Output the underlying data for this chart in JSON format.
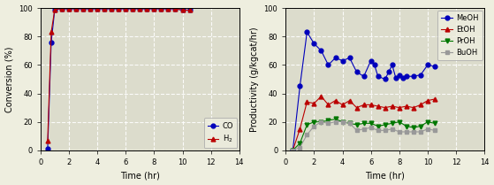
{
  "left_chart": {
    "xlabel": "Time (hr)",
    "ylabel": "Conversion (%)",
    "xlim": [
      0,
      14
    ],
    "ylim": [
      0,
      100
    ],
    "xticks": [
      0,
      2,
      4,
      6,
      8,
      10,
      12,
      14
    ],
    "yticks": [
      0,
      20,
      40,
      60,
      80,
      100
    ],
    "CO": {
      "x": [
        0.5,
        0.75,
        1.0,
        1.5,
        2.0,
        2.5,
        3.0,
        3.5,
        4.0,
        4.5,
        5.0,
        5.5,
        6.0,
        6.5,
        7.0,
        7.5,
        8.0,
        8.5,
        9.0,
        9.5,
        10.0,
        10.5
      ],
      "y": [
        1,
        76,
        99,
        99.5,
        99.5,
        99.5,
        99.5,
        99.5,
        99.5,
        99.5,
        99.5,
        99.5,
        99.5,
        99.5,
        99.5,
        99.5,
        99.5,
        99.5,
        99.5,
        99.5,
        98.5,
        98.5
      ],
      "color": "#0000bb",
      "marker": "o",
      "label": "CO"
    },
    "H2": {
      "x": [
        0.5,
        0.75,
        1.0,
        1.5,
        2.0,
        2.5,
        3.0,
        3.5,
        4.0,
        4.5,
        5.0,
        5.5,
        6.0,
        6.5,
        7.0,
        7.5,
        8.0,
        8.5,
        9.0,
        9.5,
        10.0,
        10.5
      ],
      "y": [
        7,
        83,
        99,
        99.5,
        99.5,
        99.5,
        99.5,
        99.5,
        99.5,
        99.5,
        99.5,
        99.5,
        99.5,
        99.5,
        99.5,
        99.5,
        99.5,
        99.5,
        99.5,
        99.5,
        98.5,
        98.5
      ],
      "color": "#bb0000",
      "marker": "^",
      "label": "H$_2$"
    }
  },
  "right_chart": {
    "xlabel": "Time (hr)",
    "ylabel": "Productivity (g/kgcat/hr)",
    "xlim": [
      0,
      14
    ],
    "ylim": [
      0,
      100
    ],
    "xticks": [
      0,
      2,
      4,
      6,
      8,
      10,
      12,
      14
    ],
    "yticks": [
      0,
      20,
      40,
      60,
      80,
      100
    ],
    "MeOH": {
      "x": [
        0.5,
        1.0,
        1.5,
        2.0,
        2.5,
        3.0,
        3.5,
        4.0,
        4.5,
        5.0,
        5.5,
        6.0,
        6.25,
        6.5,
        7.0,
        7.25,
        7.5,
        7.75,
        8.0,
        8.25,
        8.5,
        9.0,
        9.5,
        10.0,
        10.5
      ],
      "y": [
        0,
        45,
        83,
        75,
        70,
        60,
        65,
        63,
        65,
        55,
        52,
        63,
        60,
        52,
        50,
        55,
        60,
        51,
        53,
        51,
        52,
        52,
        53,
        60,
        59
      ],
      "color": "#0000bb",
      "marker": "o",
      "label": "MeOH"
    },
    "EtOH": {
      "x": [
        0.5,
        1.0,
        1.5,
        2.0,
        2.5,
        3.0,
        3.5,
        4.0,
        4.5,
        5.0,
        5.5,
        6.0,
        6.5,
        7.0,
        7.5,
        8.0,
        8.5,
        9.0,
        9.5,
        10.0,
        10.5
      ],
      "y": [
        0,
        15,
        34,
        33,
        38,
        32,
        35,
        32,
        35,
        30,
        32,
        32,
        31,
        30,
        31,
        30,
        31,
        30,
        32,
        35,
        36
      ],
      "color": "#bb0000",
      "marker": "^",
      "label": "EtOH"
    },
    "PrOH": {
      "x": [
        0.5,
        1.0,
        1.5,
        2.0,
        2.5,
        3.0,
        3.5,
        4.0,
        4.5,
        5.0,
        5.5,
        6.0,
        6.5,
        7.0,
        7.5,
        8.0,
        8.5,
        9.0,
        9.5,
        10.0,
        10.5
      ],
      "y": [
        0,
        5,
        18,
        20,
        20,
        21,
        22,
        20,
        19,
        18,
        19,
        19,
        17,
        18,
        19,
        20,
        17,
        16,
        17,
        20,
        19
      ],
      "color": "#007700",
      "marker": "v",
      "label": "PrOH"
    },
    "BuOH": {
      "x": [
        0.5,
        1.0,
        1.5,
        2.0,
        2.5,
        3.0,
        3.5,
        4.0,
        4.5,
        5.0,
        5.5,
        6.0,
        6.5,
        7.0,
        7.5,
        8.0,
        8.5,
        9.0,
        9.5,
        10.0,
        10.5
      ],
      "y": [
        0,
        2,
        11,
        17,
        20,
        19,
        20,
        20,
        19,
        14,
        15,
        16,
        14,
        14,
        15,
        13,
        13,
        13,
        13,
        15,
        14
      ],
      "color": "#999999",
      "marker": "s",
      "label": "BuOH"
    }
  },
  "bg_color": "#eeeedf",
  "plot_bg": "#dcdccc",
  "grid_color": "#ffffff"
}
